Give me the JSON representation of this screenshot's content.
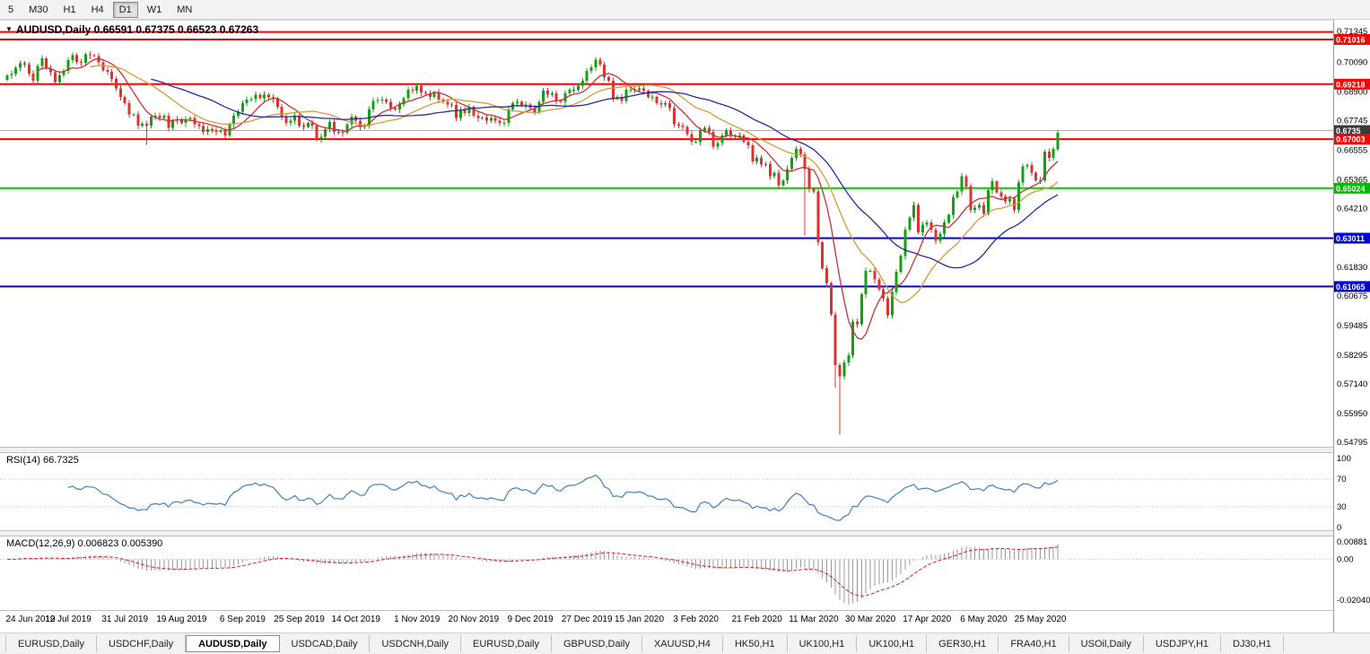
{
  "icons": {
    "symbol_dropdown": "▼"
  },
  "toolbar": {
    "timeframes": [
      {
        "label": "5",
        "active": false
      },
      {
        "label": "M30",
        "active": false
      },
      {
        "label": "H1",
        "active": false
      },
      {
        "label": "H4",
        "active": false
      },
      {
        "label": "D1",
        "active": true
      },
      {
        "label": "W1",
        "active": false
      },
      {
        "label": "MN",
        "active": false
      }
    ]
  },
  "chart": {
    "symbol_title": "AUDUSD,Daily",
    "ohlc": "0.66591 0.67375 0.66523 0.67263",
    "rsi_label": "RSI(14)",
    "rsi_value": "66.7325",
    "macd_label": "MACD(12,26,9)",
    "macd_values": "0.006823 0.005390"
  },
  "chart_data": {
    "type": "candlestick",
    "symbol": "AUDUSD",
    "timeframe": "Daily",
    "ylim": [
      0.54684,
      0.7145
    ],
    "price_scale_ticks": [
      "0.71345",
      "0.70090",
      "0.68900",
      "0.67745",
      "0.66555",
      "0.65365",
      "0.64210",
      "0.63020",
      "0.61830",
      "0.60675",
      "0.59485",
      "0.58295",
      "0.57140",
      "0.55950",
      "0.54795"
    ],
    "levels": [
      {
        "price": 0.7132,
        "color": "#ff0000",
        "width": 2,
        "tag": null,
        "tag_color": null
      },
      {
        "price": 0.71016,
        "color": "#ff0000",
        "width": 2,
        "tag": "0.71016",
        "tag_color": "#ff0000"
      },
      {
        "price": 0.69218,
        "color": "#ff0000",
        "width": 2,
        "tag": "0.69218",
        "tag_color": "#ff0000"
      },
      {
        "price": 0.6735,
        "color": "#ababab",
        "width": 1,
        "tag": "0.6735",
        "tag_color": "#3a3a3a"
      },
      {
        "price": 0.67003,
        "color": "#ff0000",
        "width": 2,
        "tag": "0.67003",
        "tag_color": "#ff0000"
      },
      {
        "price": 0.65024,
        "color": "#00cc00",
        "width": 2,
        "tag": "0.65024",
        "tag_color": "#00bb00"
      },
      {
        "price": 0.63011,
        "color": "#0000d8",
        "width": 2,
        "tag": "0.63011",
        "tag_color": "#0000d8"
      },
      {
        "price": 0.61065,
        "color": "#0000d8",
        "width": 2,
        "tag": "0.61065",
        "tag_color": "#0000d8"
      }
    ],
    "date_ticks": [
      {
        "i": 0,
        "label": "24 Jun 2019"
      },
      {
        "i": 14,
        "label": "12 Jul 2019"
      },
      {
        "i": 27,
        "label": "31 Jul 2019"
      },
      {
        "i": 40,
        "label": "19 Aug 2019"
      },
      {
        "i": 54,
        "label": "6 Sep 2019"
      },
      {
        "i": 67,
        "label": "25 Sep 2019"
      },
      {
        "i": 80,
        "label": "14 Oct 2019"
      },
      {
        "i": 94,
        "label": "1 Nov 2019"
      },
      {
        "i": 107,
        "label": "20 Nov 2019"
      },
      {
        "i": 120,
        "label": "9 Dec 2019"
      },
      {
        "i": 133,
        "label": "27 Dec 2019"
      },
      {
        "i": 145,
        "label": "15 Jan 2020"
      },
      {
        "i": 158,
        "label": "3 Feb 2020"
      },
      {
        "i": 172,
        "label": "21 Feb 2020"
      },
      {
        "i": 185,
        "label": "11 Mar 2020"
      },
      {
        "i": 198,
        "label": "30 Mar 2020"
      },
      {
        "i": 211,
        "label": "17 Apr 2020"
      },
      {
        "i": 224,
        "label": "6 May 2020"
      },
      {
        "i": 237,
        "label": "25 May 2020"
      }
    ],
    "first_open": 0.694,
    "closes": [
      0.6958,
      0.6963,
      0.6988,
      0.7005,
      0.7,
      0.6965,
      0.6935,
      0.6995,
      0.7025,
      0.6985,
      0.697,
      0.693,
      0.6958,
      0.6975,
      0.7018,
      0.7038,
      0.7012,
      0.7008,
      0.7042,
      0.7038,
      0.7035,
      0.701,
      0.6978,
      0.6972,
      0.6942,
      0.6905,
      0.687,
      0.6845,
      0.68,
      0.68,
      0.6755,
      0.6762,
      0.6755,
      0.679,
      0.6795,
      0.6785,
      0.6795,
      0.6745,
      0.6775,
      0.678,
      0.6765,
      0.678,
      0.6785,
      0.676,
      0.6753,
      0.673,
      0.674,
      0.6735,
      0.673,
      0.6735,
      0.6715,
      0.676,
      0.6795,
      0.681,
      0.6845,
      0.686,
      0.6862,
      0.688,
      0.6865,
      0.688,
      0.6868,
      0.6862,
      0.683,
      0.679,
      0.6765,
      0.6775,
      0.6795,
      0.6755,
      0.675,
      0.6765,
      0.6755,
      0.67,
      0.671,
      0.674,
      0.677,
      0.673,
      0.6728,
      0.6725,
      0.676,
      0.679,
      0.6775,
      0.675,
      0.6755,
      0.682,
      0.6855,
      0.6858,
      0.686,
      0.685,
      0.6825,
      0.682,
      0.684,
      0.6865,
      0.69,
      0.6895,
      0.6915,
      0.6888,
      0.6885,
      0.687,
      0.689,
      0.686,
      0.685,
      0.684,
      0.6838,
      0.6785,
      0.682,
      0.6805,
      0.683,
      0.6795,
      0.6785,
      0.6788,
      0.6775,
      0.6785,
      0.6775,
      0.6765,
      0.6765,
      0.682,
      0.6845,
      0.685,
      0.6835,
      0.684,
      0.6825,
      0.681,
      0.685,
      0.6895,
      0.688,
      0.6885,
      0.6855,
      0.685,
      0.6885,
      0.69,
      0.69,
      0.6915,
      0.6935,
      0.6975,
      0.699,
      0.7021,
      0.7,
      0.695,
      0.6935,
      0.6865,
      0.687,
      0.6855,
      0.69,
      0.69,
      0.6898,
      0.6905,
      0.6895,
      0.687,
      0.687,
      0.6845,
      0.684,
      0.6845,
      0.6825,
      0.676,
      0.6755,
      0.675,
      0.672,
      0.669,
      0.669,
      0.6735,
      0.6745,
      0.673,
      0.667,
      0.6685,
      0.6715,
      0.6735,
      0.6715,
      0.671,
      0.6715,
      0.669,
      0.6675,
      0.661,
      0.6625,
      0.66,
      0.66,
      0.655,
      0.6565,
      0.6515,
      0.6535,
      0.658,
      0.6625,
      0.666,
      0.664,
      0.658,
      0.65,
      0.649,
      0.6285,
      0.618,
      0.612,
      0.5995,
      0.579,
      0.5745,
      0.58,
      0.583,
      0.5965,
      0.5955,
      0.6075,
      0.617,
      0.617,
      0.6135,
      0.6095,
      0.606,
      0.599,
      0.6085,
      0.6165,
      0.623,
      0.6335,
      0.6385,
      0.6435,
      0.6325,
      0.6355,
      0.6365,
      0.6335,
      0.629,
      0.632,
      0.6365,
      0.6395,
      0.6465,
      0.649,
      0.655,
      0.651,
      0.6415,
      0.6425,
      0.6435,
      0.64,
      0.6495,
      0.653,
      0.6485,
      0.647,
      0.645,
      0.646,
      0.6415,
      0.6525,
      0.659,
      0.6595,
      0.6565,
      0.6535,
      0.6535,
      0.665,
      0.6625,
      0.666,
      0.6726
    ],
    "wick_overrides": {
      "32": {
        "low": 0.6677
      },
      "135": {
        "high": 0.7032
      },
      "183": {
        "low": 0.6313
      },
      "190": {
        "low": 0.57
      },
      "191": {
        "low": 0.551
      }
    },
    "last_candle": {
      "open": 0.66591,
      "high": 0.67375,
      "low": 0.66523,
      "close": 0.67263
    },
    "colors": {
      "up": "#14a014",
      "down": "#dd3232"
    },
    "moving_averages": [
      {
        "type": "sma",
        "period": 8,
        "color": "#c83232"
      },
      {
        "type": "sma",
        "period": 20,
        "color": "#d89a32"
      },
      {
        "type": "sma",
        "period": 34,
        "color": "#2a2aa0"
      }
    ],
    "rsi": {
      "period": 14,
      "color": "#4080c0",
      "levels": [
        70,
        30
      ],
      "scale_ticks": [
        "100",
        "70",
        "30",
        "0"
      ]
    },
    "macd": {
      "fast": 12,
      "slow": 26,
      "signal": 9,
      "ylim": [
        -0.0245,
        0.0105
      ],
      "histogram_color": "#9a9a9a",
      "signal_color": "#d02020",
      "scale_ticks": [
        "0.00881",
        "0.00",
        "-0.02040"
      ]
    }
  },
  "tabs": [
    {
      "label": "EURUSD,Daily",
      "active": false
    },
    {
      "label": "USDCHF,Daily",
      "active": false
    },
    {
      "label": "AUDUSD,Daily",
      "active": true
    },
    {
      "label": "USDCAD,Daily",
      "active": false
    },
    {
      "label": "USDCNH,Daily",
      "active": false
    },
    {
      "label": "EURUSD,Daily",
      "active": false
    },
    {
      "label": "GBPUSD,Daily",
      "active": false
    },
    {
      "label": "XAUUSD,H4",
      "active": false
    },
    {
      "label": "HK50,H1",
      "active": false
    },
    {
      "label": "UK100,H1",
      "active": false
    },
    {
      "label": "UK100,H1",
      "active": false
    },
    {
      "label": "GER30,H1",
      "active": false
    },
    {
      "label": "FRA40,H1",
      "active": false
    },
    {
      "label": "USOil,Daily",
      "active": false
    },
    {
      "label": "USDJPY,H1",
      "active": false
    },
    {
      "label": "DJ30,H1",
      "active": false
    }
  ]
}
